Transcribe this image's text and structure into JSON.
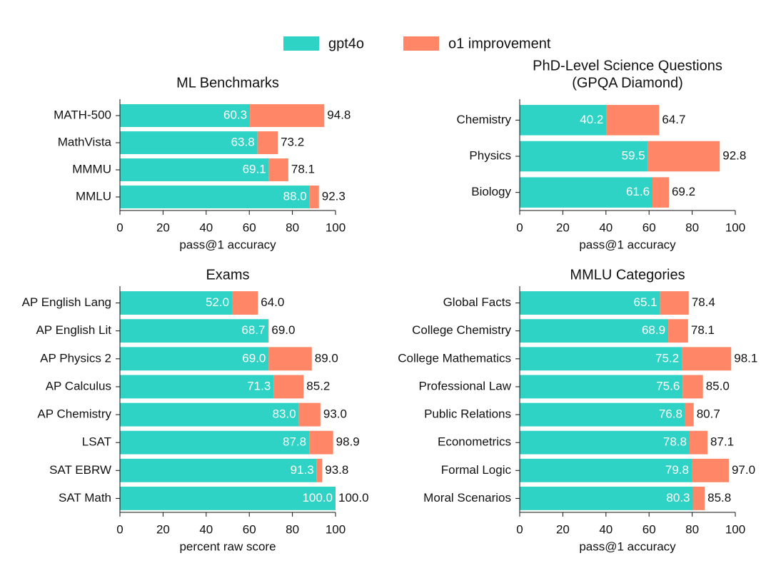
{
  "chart_data": [
    {
      "type": "barh_stacked",
      "title": "ML Benchmarks",
      "xlabel": "pass@1 accuracy",
      "categories": [
        "MATH-500",
        "MathVista",
        "MMMU",
        "MMLU"
      ],
      "series": [
        {
          "name": "gpt4o",
          "color": "#2fd3c6",
          "values": [
            60.3,
            63.8,
            69.1,
            88.0
          ],
          "value_labels": [
            "60.3",
            "63.8",
            "69.1",
            "88.0"
          ]
        },
        {
          "name": "o1 improvement",
          "color": "#ff8666",
          "values": [
            34.5,
            9.4,
            9.0,
            4.3
          ]
        }
      ],
      "total_labels": [
        "94.8",
        "73.2",
        "78.1",
        "92.3"
      ],
      "xlim": [
        0,
        100
      ],
      "xticks": [
        0,
        20,
        40,
        60,
        80,
        100
      ]
    },
    {
      "type": "barh_stacked",
      "title": "PhD-Level Science Questions",
      "subtitle": "(GPQA Diamond)",
      "xlabel": "pass@1 accuracy",
      "categories": [
        "Chemistry",
        "Physics",
        "Biology"
      ],
      "series": [
        {
          "name": "gpt4o",
          "color": "#2fd3c6",
          "values": [
            40.2,
            59.5,
            61.6
          ],
          "value_labels": [
            "40.2",
            "59.5",
            "61.6"
          ]
        },
        {
          "name": "o1 improvement",
          "color": "#ff8666",
          "values": [
            24.5,
            33.3,
            7.6
          ]
        }
      ],
      "total_labels": [
        "64.7",
        "92.8",
        "69.2"
      ],
      "xlim": [
        0,
        100
      ],
      "xticks": [
        0,
        20,
        40,
        60,
        80,
        100
      ]
    },
    {
      "type": "barh_stacked",
      "title": "Exams",
      "xlabel": "percent raw score",
      "categories": [
        "AP English Lang",
        "AP English Lit",
        "AP Physics 2",
        "AP Calculus",
        "AP Chemistry",
        "LSAT",
        "SAT EBRW",
        "SAT Math"
      ],
      "series": [
        {
          "name": "gpt4o",
          "color": "#2fd3c6",
          "values": [
            52.0,
            68.7,
            69.0,
            71.3,
            83.0,
            87.8,
            91.3,
            100.0
          ],
          "value_labels": [
            "52.0",
            "68.7",
            "69.0",
            "71.3",
            "83.0",
            "87.8",
            "91.3",
            "100.0"
          ]
        },
        {
          "name": "o1 improvement",
          "color": "#ff8666",
          "values": [
            12.0,
            0.3,
            20.0,
            13.9,
            10.0,
            11.1,
            2.5,
            0.0
          ]
        }
      ],
      "total_labels": [
        "64.0",
        "69.0",
        "89.0",
        "85.2",
        "93.0",
        "98.9",
        "93.8",
        "100.0"
      ],
      "xlim": [
        0,
        100
      ],
      "xticks": [
        0,
        20,
        40,
        60,
        80,
        100
      ]
    },
    {
      "type": "barh_stacked",
      "title": "MMLU Categories",
      "xlabel": "pass@1 accuracy",
      "categories": [
        "Global Facts",
        "College Chemistry",
        "College Mathematics",
        "Professional Law",
        "Public Relations",
        "Econometrics",
        "Formal Logic",
        "Moral Scenarios"
      ],
      "series": [
        {
          "name": "gpt4o",
          "color": "#2fd3c6",
          "values": [
            65.1,
            68.9,
            75.2,
            75.6,
            76.8,
            78.8,
            79.8,
            80.3
          ],
          "value_labels": [
            "65.1",
            "68.9",
            "75.2",
            "75.6",
            "76.8",
            "78.8",
            "79.8",
            "80.3"
          ]
        },
        {
          "name": "o1 improvement",
          "color": "#ff8666",
          "values": [
            13.3,
            9.2,
            22.9,
            9.4,
            3.9,
            8.3,
            17.2,
            5.5
          ]
        }
      ],
      "total_labels": [
        "78.4",
        "78.1",
        "98.1",
        "85.0",
        "80.7",
        "87.1",
        "97.0",
        "85.8"
      ],
      "xlim": [
        0,
        100
      ],
      "xticks": [
        0,
        20,
        40,
        60,
        80,
        100
      ]
    }
  ]
}
